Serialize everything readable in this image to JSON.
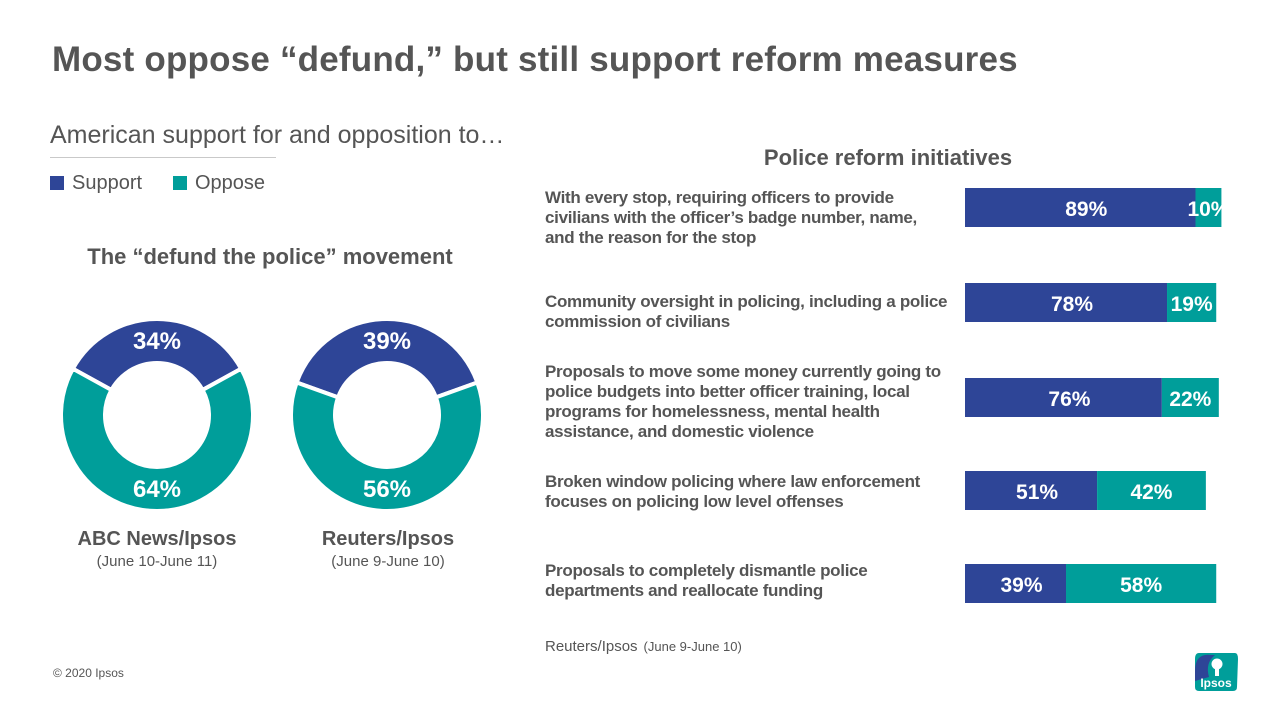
{
  "title": "Most oppose “defund,” but still support reform measures",
  "subtitle": "American support for and opposition to…",
  "legend": [
    {
      "label": "Support",
      "color": "#2e4597"
    },
    {
      "label": "Oppose",
      "color": "#009e9a"
    }
  ],
  "colors": {
    "support": "#2e4597",
    "oppose": "#009e9a"
  },
  "copyright": "© 2020 Ipsos",
  "logo_text": "Ipsos",
  "chart_data": [
    {
      "type": "pie",
      "title": "The “defund the police” movement",
      "donuts": [
        {
          "source": "ABC News/Ipsos",
          "date": "(June 10-June 11)",
          "support": 34,
          "oppose": 64
        },
        {
          "source": "Reuters/Ipsos",
          "date": "(June 9-June 10)",
          "support": 39,
          "oppose": 56
        }
      ]
    },
    {
      "type": "bar",
      "orientation": "horizontal",
      "stacked": true,
      "title": "Police reform initiatives",
      "categories": [
        "With every stop, requiring officers to provide civilians with the officer’s badge number, name, and the reason for the stop",
        "Community oversight in policing, including a police commission of civilians",
        "Proposals to move some money currently going to police budgets into better officer training, local programs for homelessness, mental health assistance, and domestic violence",
        "Broken window policing where law enforcement focuses on policing low level offenses",
        "Proposals to completely dismantle police departments and reallocate funding"
      ],
      "series": [
        {
          "name": "Support",
          "values": [
            89,
            78,
            76,
            51,
            39
          ]
        },
        {
          "name": "Oppose",
          "values": [
            10,
            19,
            22,
            42,
            58
          ]
        }
      ],
      "source": "Reuters/Ipsos",
      "source_date": "(June 9-June 10)"
    }
  ]
}
